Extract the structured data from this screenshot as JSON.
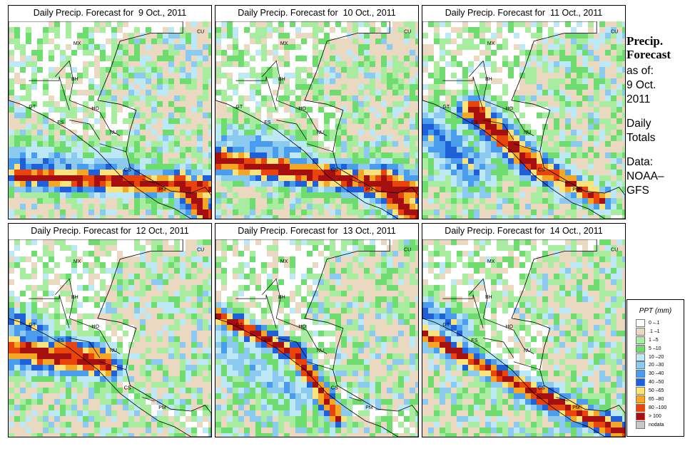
{
  "panels": [
    {
      "title": "Daily Precip. Forecast for  9 Oct., 2011"
    },
    {
      "title": "Daily Precip. Forecast for  10 Oct., 2011"
    },
    {
      "title": "Daily Precip. Forecast for  11 Oct., 2011"
    },
    {
      "title": "Daily Precip. Forecast for  12 Oct., 2011"
    },
    {
      "title": "Daily Precip. Forecast for  13 Oct., 2011"
    },
    {
      "title": "Daily Precip. Forecast for  14 Oct., 2011"
    }
  ],
  "countries": [
    "MX",
    "CU",
    "BH",
    "GT",
    "HO",
    "ES",
    "NU",
    "CS",
    "PM"
  ],
  "side": {
    "title_line1": "Precip.",
    "title_line2": "Forecast",
    "asof_line1": "as of:",
    "asof_line2": "9 Oct.",
    "asof_line3": "2011",
    "daily_line1": "Daily",
    "daily_line2": "Totals",
    "data_line1": "Data:",
    "data_line2": "NOAA–",
    "data_line3": "GFS"
  },
  "legend": {
    "title": "PPT (mm)",
    "items": [
      {
        "label": "0 –.1",
        "color": "#ffffff"
      },
      {
        "label": ".1 –1",
        "color": "#ead9c0"
      },
      {
        "label": "1 –5",
        "color": "#a8eca0"
      },
      {
        "label": "5 –10",
        "color": "#6fdc6f"
      },
      {
        "label": "10 –20",
        "color": "#bde9f6"
      },
      {
        "label": "20 –30",
        "color": "#8ccaf0"
      },
      {
        "label": "30 –40",
        "color": "#4a9ded"
      },
      {
        "label": "40 –50",
        "color": "#1f5fd8"
      },
      {
        "label": "50 –65",
        "color": "#fbe27a"
      },
      {
        "label": "65 –80",
        "color": "#f5a623"
      },
      {
        "label": "80 –100",
        "color": "#e8440c"
      },
      {
        "label": "> 100",
        "color": "#a50f10"
      },
      {
        "label": "nodata",
        "color": "#c8c8c8"
      }
    ]
  }
}
